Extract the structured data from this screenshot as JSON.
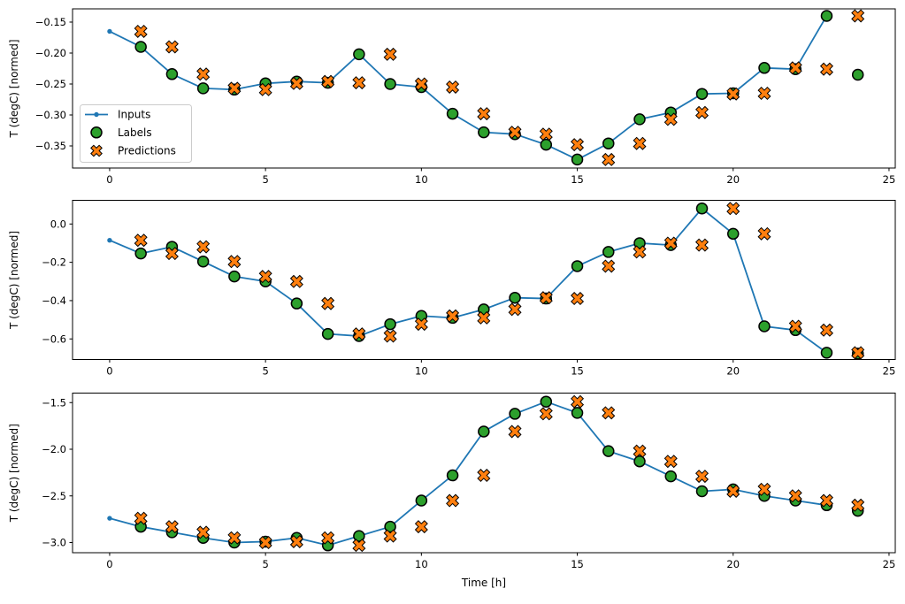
{
  "figure": {
    "background": "#ffffff",
    "xlabel": "Time [h]",
    "ylabel": "T (degC) [normed]",
    "colors": {
      "inputs": "#1f77b4",
      "labels": "#2ca02c",
      "predictions": "#ff7f0e",
      "marker_edge": "#000000",
      "spine": "#000000",
      "legend_border": "#cccccc"
    },
    "legend": {
      "items": [
        {
          "label": "Inputs",
          "marker": "line-dot-icon",
          "color": "#1f77b4"
        },
        {
          "label": "Labels",
          "marker": "circle-icon",
          "color": "#2ca02c"
        },
        {
          "label": "Predictions",
          "marker": "x-icon",
          "color": "#ff7f0e"
        }
      ]
    }
  },
  "chart_data": [
    {
      "type": "line",
      "title": "",
      "ylabel": "T (degC) [normed]",
      "xlabel": "",
      "legend_position": "lower-left-inside",
      "grid": false,
      "xlim": [
        -1.19,
        25.2
      ],
      "ylim": [
        -0.3857,
        -0.1286
      ],
      "xticks": [
        0,
        5,
        10,
        15,
        20,
        25
      ],
      "xticklabels": [
        "0",
        "5",
        "10",
        "15",
        "20",
        "25"
      ],
      "yticks": [
        -0.15,
        -0.2,
        -0.25,
        -0.3,
        -0.35
      ],
      "yticklabels": [
        "−0.15",
        "−0.20",
        "−0.25",
        "−0.30",
        "−0.35"
      ],
      "series": [
        {
          "name": "Inputs",
          "style": "line+dot",
          "x": [
            0,
            1,
            2,
            3,
            4,
            5,
            6,
            7,
            8,
            9,
            10,
            11,
            12,
            13,
            14,
            15,
            16,
            17,
            18,
            19,
            20,
            21,
            22,
            23
          ],
          "y": [
            -0.165,
            -0.19,
            -0.234,
            -0.257,
            -0.259,
            -0.249,
            -0.246,
            -0.248,
            -0.202,
            -0.25,
            -0.255,
            -0.298,
            -0.328,
            -0.331,
            -0.348,
            -0.372,
            -0.346,
            -0.307,
            -0.296,
            -0.266,
            -0.265,
            -0.224,
            -0.226,
            -0.14
          ]
        },
        {
          "name": "Labels",
          "style": "scatter-circle",
          "x": [
            1,
            2,
            3,
            4,
            5,
            6,
            7,
            8,
            9,
            10,
            11,
            12,
            13,
            14,
            15,
            16,
            17,
            18,
            19,
            20,
            21,
            22,
            23,
            24
          ],
          "y": [
            -0.19,
            -0.234,
            -0.257,
            -0.259,
            -0.249,
            -0.246,
            -0.248,
            -0.202,
            -0.25,
            -0.255,
            -0.298,
            -0.328,
            -0.331,
            -0.348,
            -0.372,
            -0.346,
            -0.307,
            -0.296,
            -0.266,
            -0.265,
            -0.224,
            -0.226,
            -0.14,
            -0.235
          ]
        },
        {
          "name": "Predictions",
          "style": "scatter-x",
          "x": [
            1,
            2,
            3,
            4,
            5,
            6,
            7,
            8,
            9,
            10,
            11,
            12,
            13,
            14,
            15,
            16,
            17,
            18,
            19,
            20,
            21,
            22,
            23,
            24
          ],
          "y": [
            -0.165,
            -0.19,
            -0.234,
            -0.257,
            -0.259,
            -0.249,
            -0.246,
            -0.248,
            -0.202,
            -0.25,
            -0.255,
            -0.298,
            -0.328,
            -0.331,
            -0.348,
            -0.372,
            -0.346,
            -0.307,
            -0.296,
            -0.266,
            -0.265,
            -0.224,
            -0.226,
            -0.14
          ]
        }
      ]
    },
    {
      "type": "line",
      "title": "",
      "ylabel": "T (degC) [normed]",
      "xlabel": "",
      "legend_position": "none",
      "grid": false,
      "xlim": [
        -1.19,
        25.2
      ],
      "ylim": [
        -0.7073,
        0.1237
      ],
      "xticks": [
        0,
        5,
        10,
        15,
        20,
        25
      ],
      "xticklabels": [
        "0",
        "5",
        "10",
        "15",
        "20",
        "25"
      ],
      "yticks": [
        0.0,
        -0.2,
        -0.4,
        -0.6
      ],
      "yticklabels": [
        "0.0",
        "−0.2",
        "−0.4",
        "−0.6"
      ],
      "series": [
        {
          "name": "Inputs",
          "style": "line+dot",
          "x": [
            0,
            1,
            2,
            3,
            4,
            5,
            6,
            7,
            8,
            9,
            10,
            11,
            12,
            13,
            14,
            15,
            16,
            17,
            18,
            19,
            20,
            21,
            22,
            23
          ],
          "y": [
            -0.085,
            -0.154,
            -0.119,
            -0.196,
            -0.274,
            -0.3,
            -0.415,
            -0.574,
            -0.585,
            -0.523,
            -0.48,
            -0.49,
            -0.446,
            -0.385,
            -0.389,
            -0.22,
            -0.146,
            -0.1,
            -0.11,
            0.081,
            -0.051,
            -0.534,
            -0.554,
            -0.672
          ]
        },
        {
          "name": "Labels",
          "style": "scatter-circle",
          "x": [
            1,
            2,
            3,
            4,
            5,
            6,
            7,
            8,
            9,
            10,
            11,
            12,
            13,
            14,
            15,
            16,
            17,
            18,
            19,
            20,
            21,
            22,
            23,
            24
          ],
          "y": [
            -0.154,
            -0.119,
            -0.196,
            -0.274,
            -0.3,
            -0.415,
            -0.574,
            -0.585,
            -0.523,
            -0.48,
            -0.49,
            -0.446,
            -0.385,
            -0.389,
            -0.22,
            -0.146,
            -0.1,
            -0.11,
            0.081,
            -0.051,
            -0.534,
            -0.554,
            -0.672,
            -0.677
          ]
        },
        {
          "name": "Predictions",
          "style": "scatter-x",
          "x": [
            1,
            2,
            3,
            4,
            5,
            6,
            7,
            8,
            9,
            10,
            11,
            12,
            13,
            14,
            15,
            16,
            17,
            18,
            19,
            20,
            21,
            22,
            23,
            24
          ],
          "y": [
            -0.085,
            -0.154,
            -0.119,
            -0.196,
            -0.274,
            -0.3,
            -0.415,
            -0.574,
            -0.585,
            -0.523,
            -0.48,
            -0.49,
            -0.446,
            -0.385,
            -0.389,
            -0.22,
            -0.146,
            -0.1,
            -0.11,
            0.081,
            -0.051,
            -0.534,
            -0.554,
            -0.672
          ]
        }
      ]
    },
    {
      "type": "line",
      "title": "",
      "ylabel": "T (degC) [normed]",
      "xlabel": "Time [h]",
      "legend_position": "none",
      "grid": false,
      "xlim": [
        -1.19,
        25.2
      ],
      "ylim": [
        -3.109,
        -1.398
      ],
      "xticks": [
        0,
        5,
        10,
        15,
        20,
        25
      ],
      "xticklabels": [
        "0",
        "5",
        "10",
        "15",
        "20",
        "25"
      ],
      "yticks": [
        -1.5,
        -2.0,
        -2.5,
        -3.0
      ],
      "yticklabels": [
        "−1.5",
        "−2.0",
        "−2.5",
        "−3.0"
      ],
      "series": [
        {
          "name": "Inputs",
          "style": "line+dot",
          "x": [
            0,
            1,
            2,
            3,
            4,
            5,
            6,
            7,
            8,
            9,
            10,
            11,
            12,
            13,
            14,
            15,
            16,
            17,
            18,
            19,
            20,
            21,
            22,
            23
          ],
          "y": [
            -2.74,
            -2.83,
            -2.89,
            -2.95,
            -3.0,
            -2.99,
            -2.95,
            -3.03,
            -2.93,
            -2.83,
            -2.55,
            -2.28,
            -1.81,
            -1.62,
            -1.49,
            -1.61,
            -2.02,
            -2.13,
            -2.29,
            -2.45,
            -2.43,
            -2.5,
            -2.55,
            -2.6
          ]
        },
        {
          "name": "Labels",
          "style": "scatter-circle",
          "x": [
            1,
            2,
            3,
            4,
            5,
            6,
            7,
            8,
            9,
            10,
            11,
            12,
            13,
            14,
            15,
            16,
            17,
            18,
            19,
            20,
            21,
            22,
            23,
            24
          ],
          "y": [
            -2.83,
            -2.89,
            -2.95,
            -3.0,
            -2.99,
            -2.95,
            -3.03,
            -2.93,
            -2.83,
            -2.55,
            -2.28,
            -1.81,
            -1.62,
            -1.49,
            -1.61,
            -2.02,
            -2.13,
            -2.29,
            -2.45,
            -2.43,
            -2.5,
            -2.55,
            -2.6,
            -2.66
          ]
        },
        {
          "name": "Predictions",
          "style": "scatter-x",
          "x": [
            1,
            2,
            3,
            4,
            5,
            6,
            7,
            8,
            9,
            10,
            11,
            12,
            13,
            14,
            15,
            16,
            17,
            18,
            19,
            20,
            21,
            22,
            23,
            24
          ],
          "y": [
            -2.74,
            -2.83,
            -2.89,
            -2.95,
            -3.0,
            -2.99,
            -2.95,
            -3.03,
            -2.93,
            -2.83,
            -2.55,
            -2.28,
            -1.81,
            -1.62,
            -1.49,
            -1.61,
            -2.02,
            -2.13,
            -2.29,
            -2.45,
            -2.43,
            -2.5,
            -2.55,
            -2.6
          ]
        }
      ]
    }
  ]
}
